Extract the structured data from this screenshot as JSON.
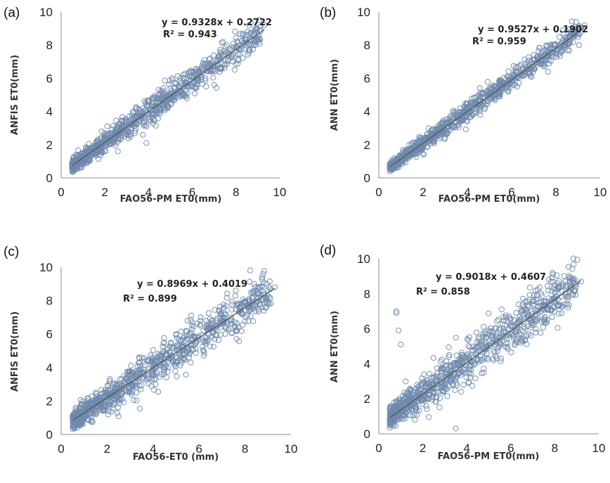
{
  "chart_data": [
    {
      "type": "scatter",
      "panel_label": "(a)",
      "xlabel": "FAO56-PM ET0(mm)",
      "ylabel": "ANFIS ET0(mm)",
      "xlim": [
        0,
        10
      ],
      "ylim": [
        0,
        10
      ],
      "xticks": [
        "0",
        "2",
        "4",
        "6",
        "8",
        "10"
      ],
      "yticks": [
        "0",
        "2",
        "4",
        "6",
        "8",
        "10"
      ],
      "equation": "y = 0.9328x + 0.2722",
      "r2_label": "R² = 0.943",
      "trend": {
        "slope": 0.9328,
        "intercept": 0.2722,
        "x_range": [
          0.5,
          9.3
        ]
      },
      "point_cloud": {
        "n": 900,
        "x_range": [
          0.5,
          9.3
        ],
        "spread": 0.42
      },
      "series": [
        {
          "name": "",
          "x": [
            0.5,
            0.6,
            0.8,
            1.0,
            1.2,
            1.5,
            1.8,
            2.0,
            2.3,
            2.6,
            3.0,
            3.3,
            3.6,
            3.8,
            4.0,
            4.2,
            4.5,
            4.8,
            5.0,
            5.3,
            5.6,
            6.0,
            6.3,
            6.6,
            7.0,
            7.2,
            7.5,
            8.0,
            8.3,
            8.6,
            9.3,
            3.9,
            7.0
          ],
          "y": [
            0.6,
            0.5,
            0.9,
            1.2,
            1.0,
            1.6,
            1.9,
            2.4,
            2.2,
            3.0,
            2.8,
            3.5,
            3.9,
            3.3,
            4.6,
            3.9,
            4.8,
            4.4,
            5.4,
            5.1,
            6.0,
            5.7,
            6.4,
            6.0,
            6.8,
            7.2,
            6.9,
            7.9,
            8.7,
            9.2,
            9.2,
            2.1,
            5.6
          ]
        }
      ]
    },
    {
      "type": "scatter",
      "panel_label": "(b)",
      "xlabel": "FAO56-PM ET0(mm)",
      "ylabel": "ANN ET0(mm)",
      "xlim": [
        0,
        10
      ],
      "ylim": [
        0,
        10
      ],
      "xticks": [
        "0",
        "2",
        "4",
        "6",
        "8",
        "10"
      ],
      "yticks": [
        "0",
        "2",
        "4",
        "6",
        "8",
        "10"
      ],
      "equation": "y = 0.9527x + 0.1902",
      "r2_label": "R² = 0.959",
      "trend": {
        "slope": 0.9527,
        "intercept": 0.1902,
        "x_range": [
          0.5,
          9.3
        ]
      },
      "point_cloud": {
        "n": 900,
        "x_range": [
          0.5,
          9.3
        ],
        "spread": 0.34
      },
      "series": [
        {
          "name": "",
          "x": [
            0.5,
            0.7,
            1.0,
            1.3,
            1.6,
            2.0,
            2.4,
            2.8,
            3.2,
            3.5,
            3.8,
            4.1,
            4.4,
            4.8,
            5.2,
            5.6,
            6.0,
            6.4,
            6.8,
            7.2,
            7.6,
            8.0,
            8.3,
            8.6,
            9.3
          ],
          "y": [
            0.6,
            0.8,
            1.1,
            1.3,
            1.8,
            2.0,
            2.6,
            2.8,
            3.3,
            3.6,
            3.9,
            4.0,
            4.6,
            4.8,
            5.2,
            5.5,
            5.9,
            6.4,
            6.7,
            7.0,
            7.3,
            7.7,
            8.9,
            8.5,
            9.2
          ]
        }
      ]
    },
    {
      "type": "scatter",
      "panel_label": "(c)",
      "xlabel": "FAO56-ET0 (mm)",
      "ylabel": "ANFIS ET0(mm)",
      "xlim": [
        0,
        10
      ],
      "ylim": [
        0,
        10
      ],
      "xticks": [
        "0",
        "2",
        "4",
        "6",
        "8",
        "10"
      ],
      "yticks": [
        "0",
        "2",
        "4",
        "6",
        "8",
        "10"
      ],
      "equation": "y = 0.8969x + 0.4019",
      "r2_label": "R² = 0.899",
      "trend": {
        "slope": 0.8969,
        "intercept": 0.4019,
        "x_range": [
          0.5,
          9.3
        ]
      },
      "point_cloud": {
        "n": 900,
        "x_range": [
          0.5,
          9.3
        ],
        "spread": 0.62
      },
      "series": [
        {
          "name": "",
          "x": [
            0.5,
            0.8,
            1.0,
            1.4,
            1.8,
            2.2,
            2.6,
            3.0,
            3.4,
            3.8,
            4.2,
            4.6,
            5.0,
            5.4,
            5.8,
            6.2,
            6.6,
            7.0,
            7.4,
            7.8,
            8.2,
            8.4,
            9.3
          ],
          "y": [
            0.9,
            1.0,
            1.2,
            1.6,
            2.0,
            2.4,
            2.8,
            3.2,
            3.6,
            3.9,
            4.6,
            4.8,
            5.2,
            5.6,
            5.8,
            6.2,
            6.4,
            6.8,
            7.0,
            7.4,
            7.8,
            9.0,
            8.8
          ]
        }
      ]
    },
    {
      "type": "scatter",
      "panel_label": "(d)",
      "xlabel": "FAO56-PM ET0(mm)",
      "ylabel": "ANN ET0(mm)",
      "xlim": [
        0,
        10
      ],
      "ylim": [
        0,
        10
      ],
      "xticks": [
        "0",
        "2",
        "4",
        "6",
        "8",
        "10"
      ],
      "yticks": [
        "0",
        "2",
        "4",
        "6",
        "8",
        "10"
      ],
      "equation": "y = 0.9018x + 0.4607",
      "r2_label": "R² = 0.858",
      "trend": {
        "slope": 0.9018,
        "intercept": 0.4607,
        "x_range": [
          0.5,
          9.2
        ]
      },
      "point_cloud": {
        "n": 900,
        "x_range": [
          0.5,
          9.2
        ],
        "spread": 0.68
      },
      "series": [
        {
          "name": "",
          "x": [
            0.5,
            0.8,
            0.8,
            0.9,
            1.0,
            1.2,
            1.6,
            2.0,
            2.4,
            2.8,
            3.2,
            3.6,
            3.5,
            4.0,
            4.4,
            4.8,
            5.2,
            5.6,
            6.0,
            6.4,
            6.8,
            7.2,
            7.6,
            8.0,
            8.3,
            9.2
          ],
          "y": [
            0.6,
            6.9,
            7.0,
            5.9,
            5.1,
            1.4,
            1.9,
            2.3,
            2.6,
            3.0,
            3.4,
            3.7,
            0.3,
            4.1,
            4.5,
            4.8,
            5.2,
            5.5,
            6.2,
            6.4,
            6.7,
            7.0,
            7.3,
            7.6,
            8.4,
            8.7
          ]
        }
      ]
    }
  ]
}
